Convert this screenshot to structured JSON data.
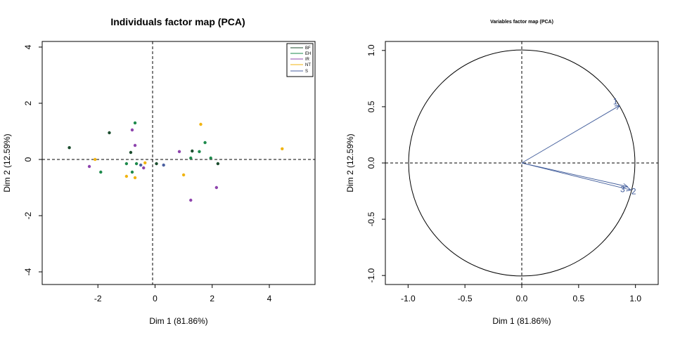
{
  "chart_data": [
    {
      "type": "scatter",
      "title": "Individuals factor map (PCA)",
      "xlabel": "Dim 1 (81.86%)",
      "ylabel": "Dim 2 (12.59%)",
      "xlim": [
        -3.95,
        5.6
      ],
      "ylim": [
        -4.45,
        4.2
      ],
      "xticks": [
        "-2",
        "0",
        "2",
        "4"
      ],
      "yticks": [
        "-4",
        "-2",
        "0",
        "2",
        "4"
      ],
      "legend_position": "top-right",
      "series": [
        {
          "name": "BF",
          "color": "#1b4d2e",
          "points": [
            [
              -3.0,
              0.42
            ],
            [
              -1.6,
              0.95
            ],
            [
              -0.85,
              0.25
            ],
            [
              1.3,
              0.3
            ],
            [
              2.2,
              -0.15
            ],
            [
              0.05,
              -0.15
            ]
          ]
        },
        {
          "name": "EH",
          "color": "#1e8a4c",
          "points": [
            [
              -1.9,
              -0.45
            ],
            [
              -0.8,
              -0.45
            ],
            [
              -0.7,
              1.3
            ],
            [
              -0.65,
              -0.15
            ],
            [
              -1.0,
              -0.15
            ],
            [
              1.25,
              0.05
            ],
            [
              1.55,
              0.28
            ],
            [
              1.75,
              0.6
            ],
            [
              1.95,
              0.05
            ]
          ]
        },
        {
          "name": "IR",
          "color": "#8e44ad",
          "points": [
            [
              -2.3,
              -0.25
            ],
            [
              -0.8,
              1.05
            ],
            [
              -0.7,
              0.5
            ],
            [
              -0.4,
              -0.3
            ],
            [
              0.85,
              0.28
            ],
            [
              1.25,
              -1.45
            ],
            [
              2.15,
              -1.0
            ]
          ]
        },
        {
          "name": "NT",
          "color": "#f1b411",
          "points": [
            [
              -2.1,
              0.0
            ],
            [
              -1.0,
              -0.6
            ],
            [
              -0.7,
              -0.65
            ],
            [
              -0.35,
              -0.12
            ],
            [
              1.0,
              -0.55
            ],
            [
              1.6,
              1.25
            ],
            [
              4.45,
              0.38
            ]
          ]
        },
        {
          "name": "S",
          "color": "#4a5fa0",
          "points": [
            [
              0.3,
              -0.2
            ],
            [
              -0.5,
              -0.2
            ]
          ]
        }
      ]
    },
    {
      "type": "vector",
      "title": "Variables factor map (PCA)",
      "xlabel": "Dim 1 (81.86%)",
      "ylabel": "Dim 2 (12.59%)",
      "xlim": [
        -1.2,
        1.2
      ],
      "ylim": [
        -1.08,
        1.08
      ],
      "xticks": [
        "-1.0",
        "-0.5",
        "0.0",
        "0.5",
        "1.0"
      ],
      "yticks": [
        "-1.0",
        "-0.5",
        "0.0",
        "0.5",
        "1.0"
      ],
      "circle_radius": 1.0,
      "arrow_color": "#3e5a99",
      "vectors": [
        {
          "name": "1",
          "x": 0.86,
          "y": 0.51
        },
        {
          "name": "2",
          "x": 0.96,
          "y": -0.24
        },
        {
          "name": "3",
          "x": 0.93,
          "y": -0.21
        }
      ]
    }
  ]
}
